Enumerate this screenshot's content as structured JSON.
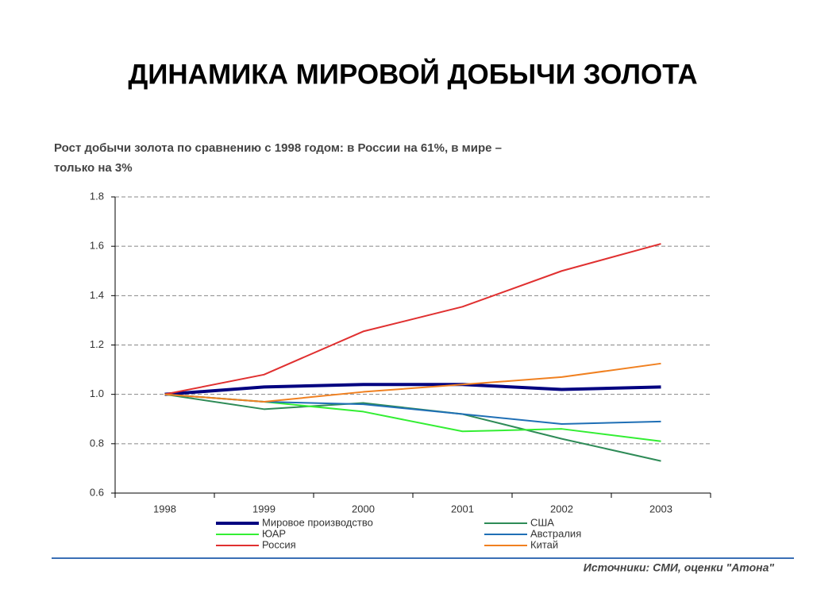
{
  "slide_title": "ДИНАМИКА МИРОВОЙ ДОБЫЧИ ЗОЛОТА",
  "chart_data": {
    "type": "line",
    "title": [
      "Рост добычи золота по сравнению с 1998 годом: в  России на 61%, в мире –",
      "только на 3%"
    ],
    "categories": [
      "1998",
      "1999",
      "2000",
      "2001",
      "2002",
      "2003"
    ],
    "series": [
      {
        "name": "Мировое производство",
        "color": "#000080",
        "width": 4,
        "values": [
          1.0,
          1.03,
          1.04,
          1.04,
          1.02,
          1.03
        ]
      },
      {
        "name": "США",
        "color": "#2e8b57",
        "width": 2,
        "values": [
          1.0,
          0.94,
          0.965,
          0.92,
          0.82,
          0.73
        ]
      },
      {
        "name": "ЮАР",
        "color": "#33ee33",
        "width": 2,
        "values": [
          1.0,
          0.97,
          0.93,
          0.85,
          0.86,
          0.81
        ]
      },
      {
        "name": "Австралия",
        "color": "#1f6fb5",
        "width": 2,
        "values": [
          1.0,
          0.97,
          0.96,
          0.92,
          0.88,
          0.89
        ]
      },
      {
        "name": "Россия",
        "color": "#e03030",
        "width": 2,
        "values": [
          1.0,
          1.08,
          1.255,
          1.355,
          1.5,
          1.61
        ]
      },
      {
        "name": "Китай",
        "color": "#f08020",
        "width": 2,
        "values": [
          1.0,
          0.97,
          1.01,
          1.04,
          1.07,
          1.125
        ]
      }
    ],
    "ylim": [
      0.6,
      1.8
    ],
    "yticks": [
      0.6,
      0.8,
      {
        "value": 1,
        "label": "1.0"
      },
      1.2,
      1.4,
      1.6,
      1.8
    ],
    "grid": true,
    "source": "Источники: СМИ, оценки \"Атона\""
  }
}
